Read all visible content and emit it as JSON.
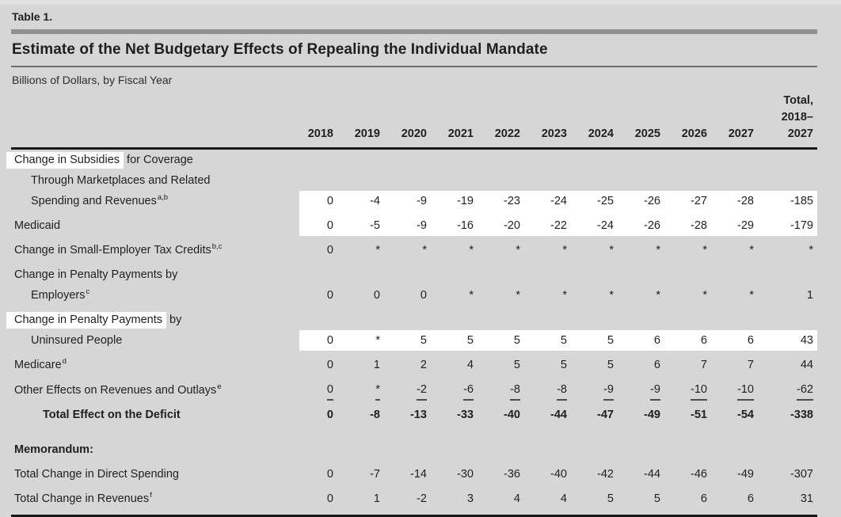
{
  "page": {
    "table_label": "Table 1.",
    "title": "Estimate of the Net Budgetary Effects of Repealing the Individual Mandate",
    "subtitle": "Billions of Dollars, by Fiscal Year"
  },
  "colors": {
    "background": "#d6d6d6",
    "highlight": "#ffffff",
    "thick_rule": "#919191",
    "thin_rule": "#6d6d6d",
    "dark_rule": "#181818",
    "text": "#1f1f1f"
  },
  "table": {
    "year_headers": [
      "2018",
      "2019",
      "2020",
      "2021",
      "2022",
      "2023",
      "2024",
      "2025",
      "2026",
      "2027"
    ],
    "total_header_lines": [
      "Total,",
      "2018–",
      "2027"
    ],
    "rows": [
      {
        "gap": 0,
        "label": {
          "indent": 0,
          "segments": [
            {
              "t": "Change in Subsidies",
              "hl": true
            },
            {
              "t": " for Coverage"
            }
          ]
        }
      },
      {
        "gap": 0,
        "label": {
          "indent": 1,
          "segments": [
            {
              "t": "Through Marketplaces and Related"
            }
          ]
        }
      },
      {
        "gap": 0,
        "label": {
          "indent": 1,
          "segments": [
            {
              "t": "Spending and Revenues"
            },
            {
              "t": "a,b",
              "sup": true
            }
          ]
        },
        "values": [
          "0",
          "-4",
          "-9",
          "-19",
          "-23",
          "-24",
          "-25",
          "-26",
          "-27",
          "-28",
          "-185"
        ],
        "vhl": true
      },
      {
        "gap": 1,
        "label": {
          "indent": 0,
          "segments": [
            {
              "t": "Medicaid"
            }
          ]
        },
        "values": [
          "0",
          "-5",
          "-9",
          "-16",
          "-20",
          "-22",
          "-24",
          "-26",
          "-28",
          "-29",
          "-179"
        ],
        "vhl": true
      },
      {
        "gap": 1,
        "label": {
          "indent": 0,
          "segments": [
            {
              "t": "Change in Small-Employer Tax Credits"
            },
            {
              "t": "b,c",
              "sup": true
            }
          ]
        },
        "values": [
          "0",
          "*",
          "*",
          "*",
          "*",
          "*",
          "*",
          "*",
          "*",
          "*",
          "*"
        ]
      },
      {
        "gap": 1,
        "label": {
          "indent": 0,
          "segments": [
            {
              "t": "Change in Penalty Payments by"
            }
          ]
        }
      },
      {
        "gap": 0,
        "label": {
          "indent": 1,
          "segments": [
            {
              "t": "Employers"
            },
            {
              "t": "c",
              "sup": true
            }
          ]
        },
        "values": [
          "0",
          "0",
          "0",
          "*",
          "*",
          "*",
          "*",
          "*",
          "*",
          "*",
          "1"
        ]
      },
      {
        "gap": 1,
        "label": {
          "indent": 0,
          "segments": [
            {
              "t": "Change in Penalty Payments",
              "hl": true
            },
            {
              "t": " by"
            }
          ]
        }
      },
      {
        "gap": 0,
        "label": {
          "indent": 1,
          "segments": [
            {
              "t": "Uninsured People"
            }
          ]
        },
        "values": [
          "0",
          "*",
          "5",
          "5",
          "5",
          "5",
          "5",
          "6",
          "6",
          "6",
          "43"
        ],
        "vhl": true
      },
      {
        "gap": 1,
        "label": {
          "indent": 0,
          "segments": [
            {
              "t": "Medicare"
            },
            {
              "t": "d",
              "sup": true
            }
          ]
        },
        "values": [
          "0",
          "1",
          "2",
          "4",
          "5",
          "5",
          "5",
          "6",
          "7",
          "7",
          "44"
        ]
      },
      {
        "gap": 1,
        "label": {
          "indent": 0,
          "segments": [
            {
              "t": "Other Effects on Revenues and Outlays"
            },
            {
              "t": "e",
              "sup": true
            }
          ]
        },
        "values": [
          "0",
          "*",
          "-2",
          "-6",
          "-8",
          "-8",
          "-9",
          "-9",
          "-10",
          "-10",
          "-62"
        ],
        "underline": true
      },
      {
        "gap": 1,
        "bold": true,
        "label": {
          "indent": 2,
          "segments": [
            {
              "t": "Total Effect on the Deficit"
            }
          ]
        },
        "values": [
          "0",
          "-8",
          "-13",
          "-33",
          "-40",
          "-44",
          "-47",
          "-49",
          "-51",
          "-54",
          "-338"
        ]
      },
      {
        "gap": 2,
        "bold": true,
        "label": {
          "indent": 0,
          "segments": [
            {
              "t": "Memorandum:"
            }
          ]
        }
      },
      {
        "gap": 1,
        "label": {
          "indent": 0,
          "segments": [
            {
              "t": "Total Change in Direct Spending"
            }
          ]
        },
        "values": [
          "0",
          "-7",
          "-14",
          "-30",
          "-36",
          "-40",
          "-42",
          "-44",
          "-46",
          "-49",
          "-307"
        ]
      },
      {
        "gap": 1,
        "last": true,
        "label": {
          "indent": 0,
          "segments": [
            {
              "t": "Total Change in Revenues"
            },
            {
              "t": "f",
              "sup": true
            }
          ]
        },
        "values": [
          "0",
          "1",
          "-2",
          "3",
          "4",
          "4",
          "5",
          "5",
          "6",
          "6",
          "31"
        ]
      }
    ]
  }
}
